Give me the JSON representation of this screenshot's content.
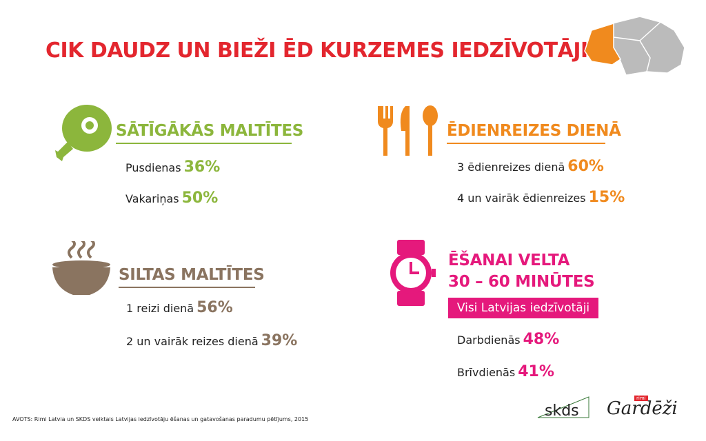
{
  "header": {
    "title": "CIK DAUDZ UN BIEŽI ĒD KURZEMES IEDZĪVOTĀJI?"
  },
  "sections": [
    {
      "title": "SĀTĪGĀKĀS MALTĪTES",
      "items": [
        {
          "label": "Pusdienas",
          "value": "36%"
        },
        {
          "label": "Vakariņas",
          "value": "50%"
        }
      ]
    },
    {
      "title": "ĒDIENREIZES DIENĀ",
      "items": [
        {
          "label": "3 ēdienreizes dienā",
          "value": "60%"
        },
        {
          "label": "4 un vairāk ēdienreizes",
          "value": "15%"
        }
      ]
    },
    {
      "title": "SILTAS MALTĪTES",
      "items": [
        {
          "label": "1 reizi dienā",
          "value": "56%"
        },
        {
          "label": "2 un vairāk reizes dienā",
          "value": "39%"
        }
      ]
    },
    {
      "title_lines": [
        "ĒŠANAI VELTA",
        "30 – 60 MINŪTES"
      ],
      "badge": "Visi Latvijas iedzīvotāji",
      "items": [
        {
          "label": "Darbdienās",
          "value": "48%"
        },
        {
          "label": "Brīvdienās",
          "value": "41%"
        }
      ]
    }
  ],
  "footer": {
    "source": "AVOTS: Rimi Latvia un SKDS veiktais Latvijas iedzīvotāju ēšanas un gatavošanas paradumu pētījums, 2015",
    "logos": [
      "skds",
      "Gardēži"
    ],
    "logo_tag": "rimi"
  }
}
